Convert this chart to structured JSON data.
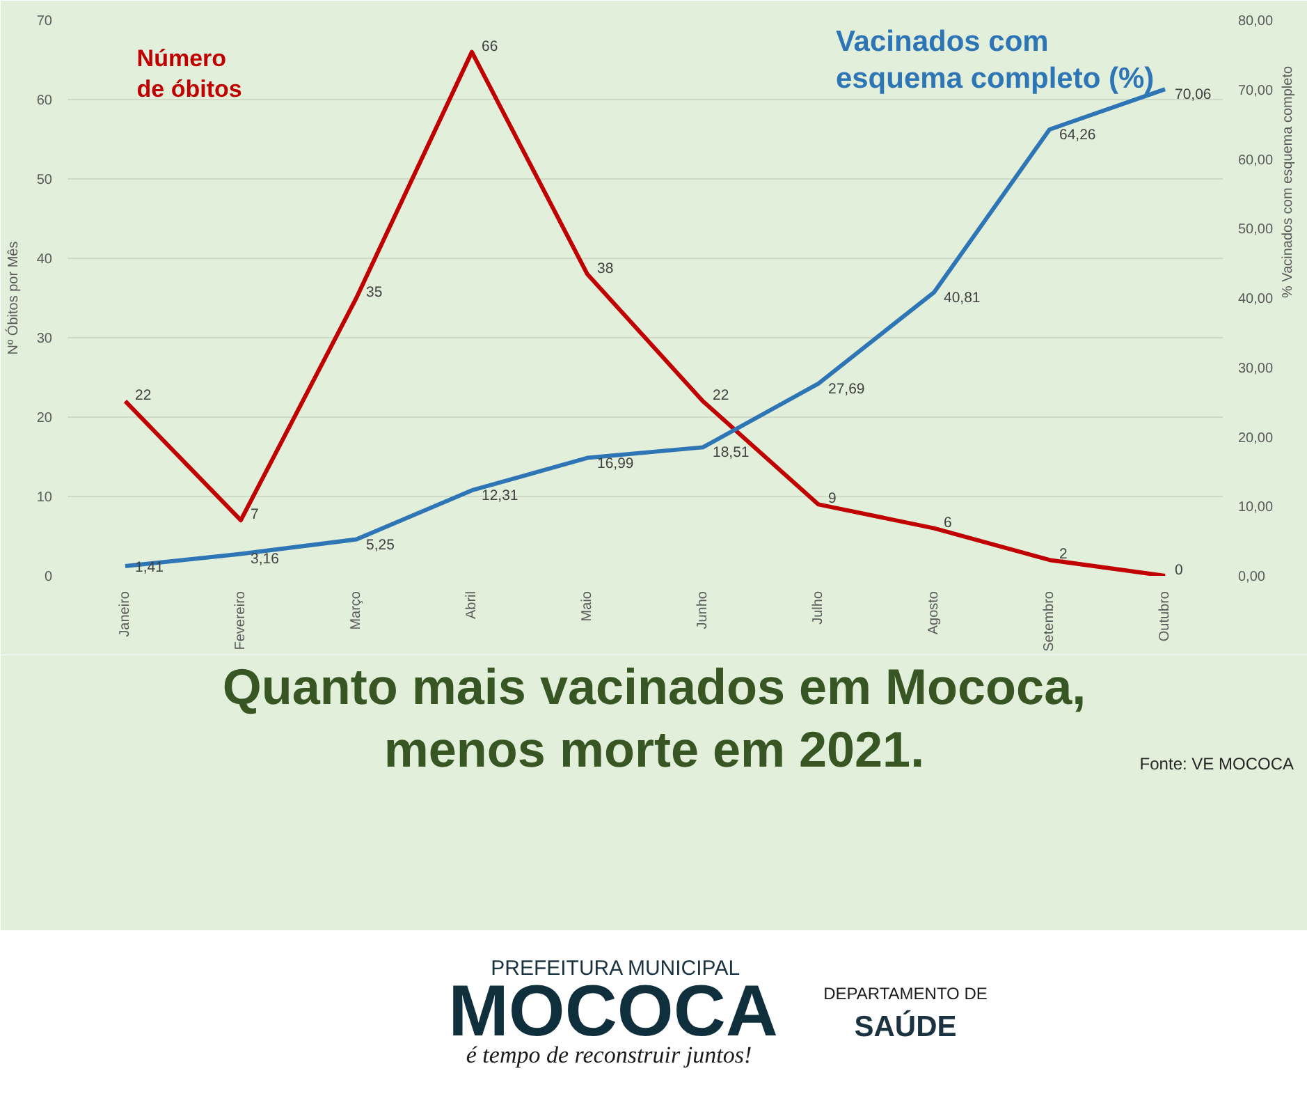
{
  "chart_data": {
    "type": "line",
    "title": "Quanto mais vacinados em Mococa,\nmenos morte em 2021.",
    "ylabel": "Nº Óbitos por Mês",
    "y2label": "% Vacinados com esquema completo",
    "categories": [
      "Janeiro",
      "Fevereiro",
      "Março",
      "Abril",
      "Maio",
      "Junho",
      "Julho",
      "Agosto",
      "Setembro",
      "Outubro"
    ],
    "series": [
      {
        "name": "Número\nde óbitos",
        "color": "#c00000",
        "values": [
          22,
          7,
          35,
          66,
          38,
          22,
          9,
          6,
          2,
          0
        ],
        "value_labels": [
          "22",
          "7",
          "35",
          "66",
          "38",
          "22",
          "9",
          "6",
          "2",
          "0"
        ]
      },
      {
        "name": "Vacinados com\nesquema completo (%)",
        "color": "#2e75b6",
        "axis": "y2",
        "values": [
          1.41,
          3.16,
          5.25,
          12.31,
          16.99,
          18.51,
          27.69,
          40.81,
          64.26,
          70.06
        ],
        "value_labels": [
          "1,41",
          "3,16",
          "5,25",
          "12,31",
          "16,99",
          "18,51",
          "27,69",
          "40,81",
          "64,26",
          "70,06"
        ]
      }
    ],
    "ylim": [
      0,
      70
    ],
    "yticks": [
      0,
      10,
      20,
      30,
      40,
      50,
      60,
      70
    ],
    "y2lim": [
      0,
      80
    ],
    "y2ticks": [
      {
        "value": 0,
        "label": "0,00"
      },
      {
        "value": 10,
        "label": "10,00"
      },
      {
        "value": 20,
        "label": "20,00"
      },
      {
        "value": 30,
        "label": "30,00"
      },
      {
        "value": 40,
        "label": "40,00"
      },
      {
        "value": 50,
        "label": "50,00"
      },
      {
        "value": 60,
        "label": "60,00"
      },
      {
        "value": 70,
        "label": "70,00"
      },
      {
        "value": 80,
        "label": "80,00"
      }
    ],
    "grid": "y",
    "line_style": "solid",
    "annotations": [
      "Fonte: VE MOCOCA",
      "PREFEITURA MUNICIPAL",
      "MOCOCA",
      "é tempo de reconstruir juntos!",
      "DEPARTAMENTO DE",
      "SAÚDE"
    ]
  }
}
